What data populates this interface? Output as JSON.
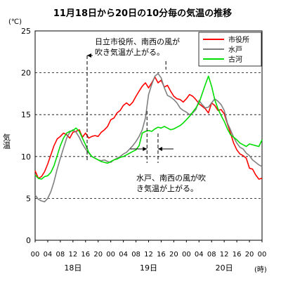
{
  "chart_data": {
    "type": "line",
    "title": "11月18日から20日の10分毎の気温の推移",
    "ylabel": "気温",
    "yunit": "(℃)",
    "xunit": "(時)",
    "ylim": [
      0,
      25
    ],
    "yticks": [
      "0",
      "5",
      "10",
      "15",
      "20",
      "25"
    ],
    "xlim": [
      0,
      72
    ],
    "xtick_labels": [
      "00",
      "04",
      "08",
      "12",
      "16",
      "20",
      "00",
      "04",
      "08",
      "12",
      "16",
      "20",
      "00",
      "04",
      "08",
      "12",
      "16",
      "20",
      "00"
    ],
    "day_labels": [
      "18日",
      "19日",
      "20日"
    ],
    "grid": "horizontal-dashed",
    "legend_position": "top-right",
    "series": [
      {
        "name": "市役所",
        "color": "#ff0000",
        "x": [
          0,
          1,
          2,
          3,
          4,
          5,
          6,
          7,
          8,
          9,
          10,
          11,
          12,
          13,
          14,
          15,
          16,
          17,
          18,
          19,
          20,
          21,
          22,
          23,
          24,
          25,
          26,
          27,
          28,
          29,
          30,
          31,
          32,
          33,
          34,
          35,
          36,
          37,
          38,
          39,
          40,
          41,
          42,
          43,
          44,
          45,
          46,
          47,
          48,
          49,
          50,
          51,
          52,
          53,
          54,
          55,
          56,
          57,
          58,
          59,
          60,
          61,
          62,
          63,
          64,
          65,
          66,
          67,
          68,
          69,
          70,
          71,
          72
        ],
        "y": [
          8.3,
          7.4,
          7.6,
          8.2,
          9.1,
          10.2,
          11.3,
          12.1,
          12.4,
          12.8,
          12.6,
          12.2,
          12.9,
          13.0,
          13.2,
          12.3,
          12.8,
          12.2,
          12.4,
          12.5,
          12.4,
          12.9,
          13.2,
          13.6,
          14.4,
          14.6,
          15.2,
          15.5,
          16.1,
          16.4,
          16.1,
          16.5,
          17.2,
          17.8,
          18.4,
          18.8,
          18.2,
          18.8,
          19.5,
          18.8,
          19.1,
          18.3,
          18.5,
          17.8,
          17.2,
          16.9,
          16.8,
          16.5,
          16.9,
          17.4,
          17.2,
          16.8,
          16.3,
          16.0,
          15.7,
          15.2,
          16.4,
          16.1,
          15.5,
          15.6,
          15.1,
          13.9,
          12.8,
          11.6,
          10.8,
          10.3,
          10.1,
          9.8,
          8.6,
          8.5,
          7.8,
          7.3,
          7.4
        ]
      },
      {
        "name": "水戸",
        "color": "#808080",
        "x": [
          0,
          1,
          2,
          3,
          4,
          5,
          6,
          7,
          8,
          9,
          10,
          11,
          12,
          13,
          14,
          15,
          16,
          17,
          18,
          19,
          20,
          21,
          22,
          23,
          24,
          25,
          26,
          27,
          28,
          29,
          30,
          31,
          32,
          33,
          34,
          35,
          36,
          37,
          38,
          39,
          40,
          41,
          42,
          43,
          44,
          45,
          46,
          47,
          48,
          49,
          50,
          51,
          52,
          53,
          54,
          55,
          56,
          57,
          58,
          59,
          60,
          61,
          62,
          63,
          64,
          65,
          66,
          67,
          68,
          69,
          70,
          71,
          72
        ],
        "y": [
          5.4,
          4.9,
          4.7,
          4.6,
          5.0,
          5.8,
          7.0,
          8.5,
          9.8,
          11.0,
          12.2,
          12.9,
          13.2,
          12.9,
          12.3,
          11.5,
          10.9,
          10.4,
          10.0,
          9.8,
          9.6,
          9.5,
          9.6,
          9.4,
          9.3,
          9.6,
          9.8,
          10.0,
          10.3,
          10.5,
          10.9,
          11.3,
          11.8,
          12.4,
          13.2,
          14.6,
          17.4,
          18.6,
          19.6,
          19.9,
          19.4,
          18.2,
          17.3,
          17.1,
          16.8,
          16.4,
          15.8,
          15.5,
          15.3,
          15.0,
          15.2,
          15.6,
          16.7,
          16.2,
          15.8,
          15.9,
          16.4,
          16.9,
          16.6,
          16.2,
          15.5,
          14.0,
          13.2,
          12.3,
          11.6,
          11.1,
          10.9,
          10.4,
          10.1,
          9.6,
          9.3,
          9.0,
          8.8
        ]
      },
      {
        "name": "古河",
        "color": "#00dd00",
        "x": [
          0,
          1,
          2,
          3,
          4,
          5,
          6,
          7,
          8,
          9,
          10,
          11,
          12,
          13,
          14,
          15,
          16,
          17,
          18,
          19,
          20,
          21,
          22,
          23,
          24,
          25,
          26,
          27,
          28,
          29,
          30,
          31,
          32,
          33,
          34,
          35,
          36,
          37,
          38,
          39,
          40,
          41,
          42,
          43,
          44,
          45,
          46,
          47,
          48,
          49,
          50,
          51,
          52,
          53,
          54,
          55,
          56,
          57,
          58,
          59,
          60,
          61,
          62,
          63,
          64,
          65,
          66,
          67,
          68,
          69,
          70,
          71,
          72
        ],
        "y": [
          7.8,
          7.4,
          7.3,
          7.6,
          7.7,
          8.1,
          8.9,
          10.1,
          11.3,
          12.2,
          12.8,
          13.0,
          13.1,
          13.4,
          13.0,
          12.2,
          11.4,
          10.5,
          10.0,
          9.8,
          9.6,
          9.4,
          9.3,
          9.2,
          9.4,
          9.6,
          9.7,
          9.9,
          10.0,
          10.2,
          10.4,
          10.6,
          10.8,
          11.3,
          12.8,
          13.0,
          13.1,
          13.0,
          13.3,
          13.5,
          13.4,
          13.6,
          13.4,
          13.2,
          13.3,
          13.5,
          13.7,
          14.0,
          14.4,
          14.8,
          15.3,
          15.8,
          16.4,
          17.5,
          18.6,
          19.6,
          18.4,
          16.8,
          15.7,
          14.9,
          14.2,
          13.3,
          12.6,
          12.3,
          12.0,
          11.6,
          11.4,
          11.2,
          11.5,
          11.4,
          11.3,
          11.2,
          12.0
        ]
      }
    ],
    "annotations": [
      {
        "lines": [
          "日立市役所、南西の風が",
          "吹き気温が上がる。"
        ],
        "x_start": 16.5,
        "x_end": 41.5
      },
      {
        "lines": [
          "水戸、南西の風が吹",
          "き気温が上がる。"
        ],
        "x_start": 35.5,
        "x_end": 39
      }
    ]
  }
}
